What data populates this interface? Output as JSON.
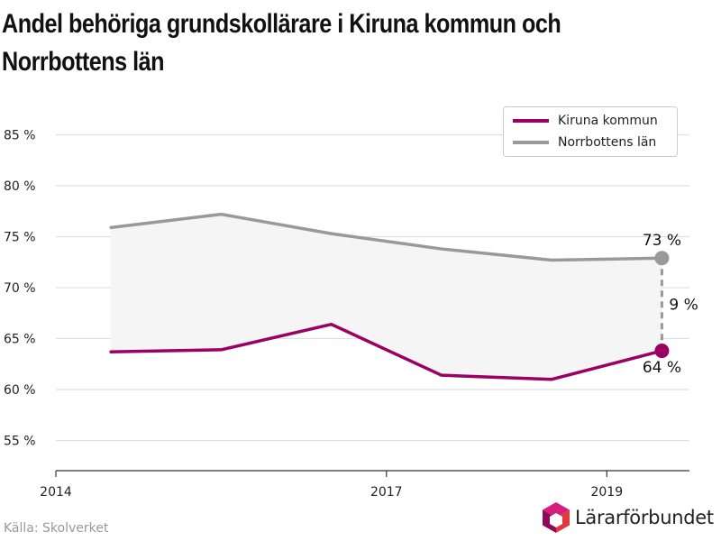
{
  "chart_data": {
    "type": "line",
    "title": "Andel behöriga grundskollärare i Kiruna kommun och Norrbottens län",
    "title_lines": [
      "Andel behöriga grundskollärare i Kiruna kommun och",
      "Norrbottens län"
    ],
    "x": [
      2014.5,
      2015.5,
      2016.5,
      2017.5,
      2018.5,
      2019.5
    ],
    "x_ticks": [
      2014,
      2017,
      2019
    ],
    "x_tick_labels": [
      "2014",
      "2017",
      "2019"
    ],
    "xlim": [
      2014,
      2019.75
    ],
    "ylim": [
      52,
      88
    ],
    "y_ticks": [
      55,
      60,
      65,
      70,
      75,
      80,
      85
    ],
    "y_tick_labels": [
      "55 %",
      "60 %",
      "65 %",
      "70 %",
      "75 %",
      "80 %",
      "85 %"
    ],
    "grid": true,
    "legend_position": "top-right",
    "series": [
      {
        "name": "Kiruna kommun",
        "color": "#9b0063",
        "values": [
          63.7,
          63.9,
          66.4,
          61.4,
          61.0,
          63.8
        ]
      },
      {
        "name": "Norrbottens län",
        "color": "#999999",
        "values": [
          75.9,
          77.2,
          75.3,
          73.8,
          72.7,
          72.9
        ]
      }
    ],
    "annotations": {
      "norrbotten_end": "73 %",
      "kiruna_end": "64 %",
      "gap": "9 %"
    },
    "band_fill_color": "#f5f5f5"
  },
  "source": "Källa: Skolverket",
  "logo": {
    "text": "Lärarförbundet",
    "colors": [
      "#d51f7d",
      "#8e0a58",
      "#e03a3e"
    ]
  }
}
